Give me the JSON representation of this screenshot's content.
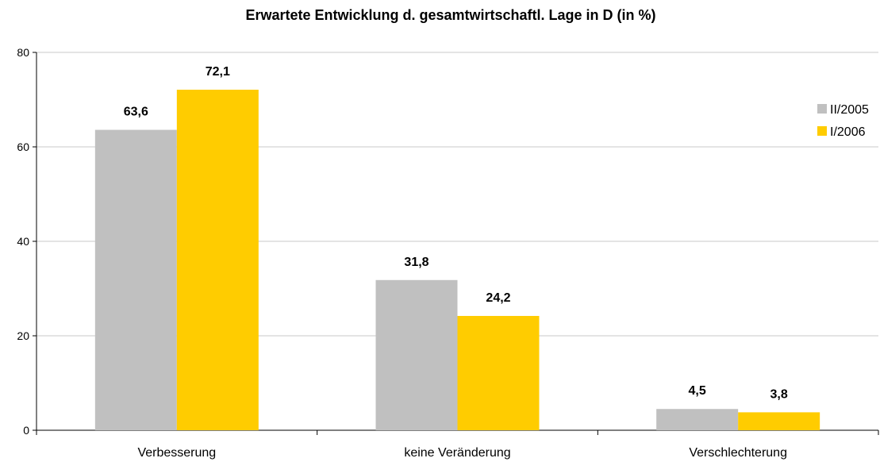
{
  "chart_data": {
    "type": "bar",
    "title": "Erwartete Entwicklung d. gesamtwirtschaftl. Lage in D (in %)",
    "xlabel": "",
    "ylabel": "",
    "categories": [
      "Verbesserung",
      "keine Veränderung",
      "Verschlechterung"
    ],
    "series": [
      {
        "name": "II/2005",
        "values": [
          63.6,
          31.8,
          4.5
        ],
        "labels": [
          "63,6",
          "31,8",
          "4,5"
        ],
        "color": "#c0c0c0"
      },
      {
        "name": "I/2006",
        "values": [
          72.1,
          24.2,
          3.8
        ],
        "labels": [
          "72,1",
          "24,2",
          "3,8"
        ],
        "color": "#ffcc00"
      }
    ],
    "ylim": [
      0,
      80
    ],
    "yticks": [
      0,
      20,
      40,
      60,
      80
    ],
    "grid": true,
    "legend_position": "right"
  }
}
